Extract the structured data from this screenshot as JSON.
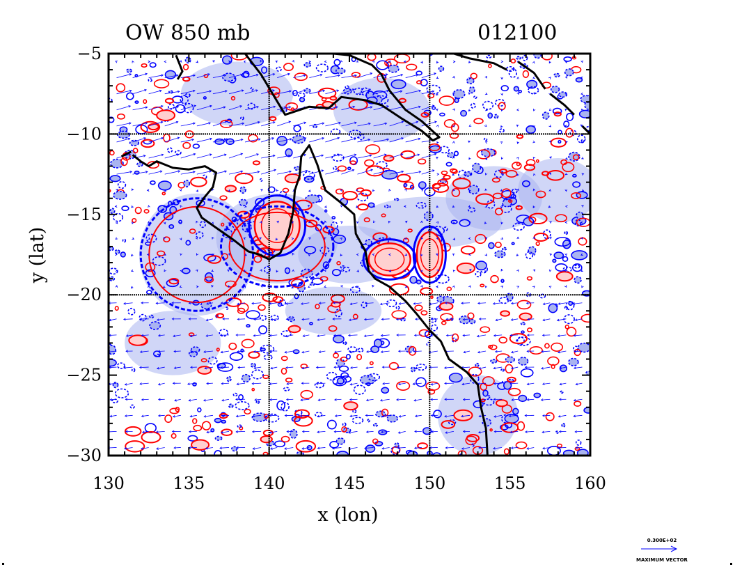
{
  "chart_data": {
    "type": "contour",
    "title": "OW 850 mb",
    "time_label": "012100",
    "xlabel": "x (lon)",
    "ylabel": "y (lat)",
    "xlim": [
      130,
      160
    ],
    "ylim": [
      -30,
      -5
    ],
    "x_ticks": [
      130,
      135,
      140,
      145,
      150,
      155,
      160
    ],
    "y_ticks": [
      -5,
      -10,
      -15,
      -20,
      -25,
      -30
    ],
    "x_tick_labels": [
      "130",
      "135",
      "140",
      "145",
      "150",
      "155",
      "160"
    ],
    "y_tick_labels": [
      "−5",
      "−10",
      "−15",
      "−20",
      "−25",
      "−30"
    ],
    "grid_lines": {
      "lon": [
        140,
        150
      ],
      "lat": [
        -10,
        -20
      ]
    },
    "grid": true,
    "legend": {
      "value_label": "0.300E+02",
      "caption": "MAXIMUM VECTOR"
    },
    "colors": {
      "positive_contour": "#ff0000",
      "positive_fill": "#ffd0d0",
      "negative_contour": "#0000ff",
      "negative_fill": "#aab4f0",
      "vector": "#0000ff",
      "coastline": "#000000"
    },
    "features": [
      {
        "name": "positive-core-gulf",
        "lon": 140.5,
        "lat": -15.7,
        "rx": 1.4,
        "ry": 1.5
      },
      {
        "name": "positive-core-coral-sea",
        "lon": 147.5,
        "lat": -17.8,
        "rx": 1.3,
        "ry": 1.0
      },
      {
        "name": "positive-core-east",
        "lon": 150.0,
        "lat": -17.5,
        "rx": 0.8,
        "ry": 1.4
      },
      {
        "name": "negative-band-gulf",
        "lon": 140.5,
        "lat": -17.0,
        "rx": 3.5,
        "ry": 2.5
      },
      {
        "name": "negative-band-inland",
        "lon": 135.5,
        "lat": -17.5,
        "rx": 3.5,
        "ry": 3.5
      }
    ]
  }
}
